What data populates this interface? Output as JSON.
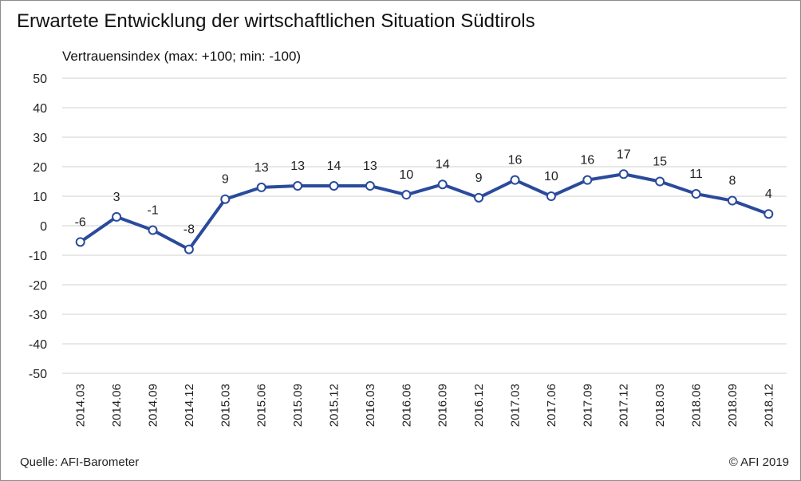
{
  "chart_data": {
    "type": "line",
    "title": "Erwartete Entwicklung der wirtschaftlichen Situation Südtirols",
    "ylabel": "Vertrauensindex (max: +100; min: -100)",
    "xlabel": "",
    "ylim": [
      -50,
      50
    ],
    "yticks": [
      50,
      40,
      30,
      20,
      10,
      0,
      -10,
      -20,
      -30,
      -40,
      -50
    ],
    "grid": true,
    "legend": "none",
    "categories": [
      "2014.03",
      "2014.06",
      "2014.09",
      "2014.12",
      "2015.03",
      "2015.06",
      "2015.09",
      "2015.12",
      "2016.03",
      "2016.06",
      "2016.09",
      "2016.12",
      "2017.03",
      "2017.06",
      "2017.09",
      "2017.12",
      "2018.03",
      "2018.06",
      "2018.09",
      "2018.12"
    ],
    "series": [
      {
        "values": [
          -6,
          3,
          -1,
          -8,
          9,
          13,
          13,
          14,
          13,
          10,
          14,
          9,
          16,
          10,
          16,
          17,
          15,
          11,
          8,
          4
        ],
        "plotted": [
          -5.5,
          3,
          -1.5,
          -8,
          9,
          13,
          13.5,
          13.5,
          13.5,
          10.5,
          14,
          9.5,
          15.5,
          10,
          15.5,
          17.5,
          15,
          10.8,
          8.5,
          4
        ],
        "color": "#2a4a9c"
      }
    ]
  },
  "footer": {
    "source": "Quelle: AFI-Barometer",
    "copyright": "© AFI 2019"
  }
}
